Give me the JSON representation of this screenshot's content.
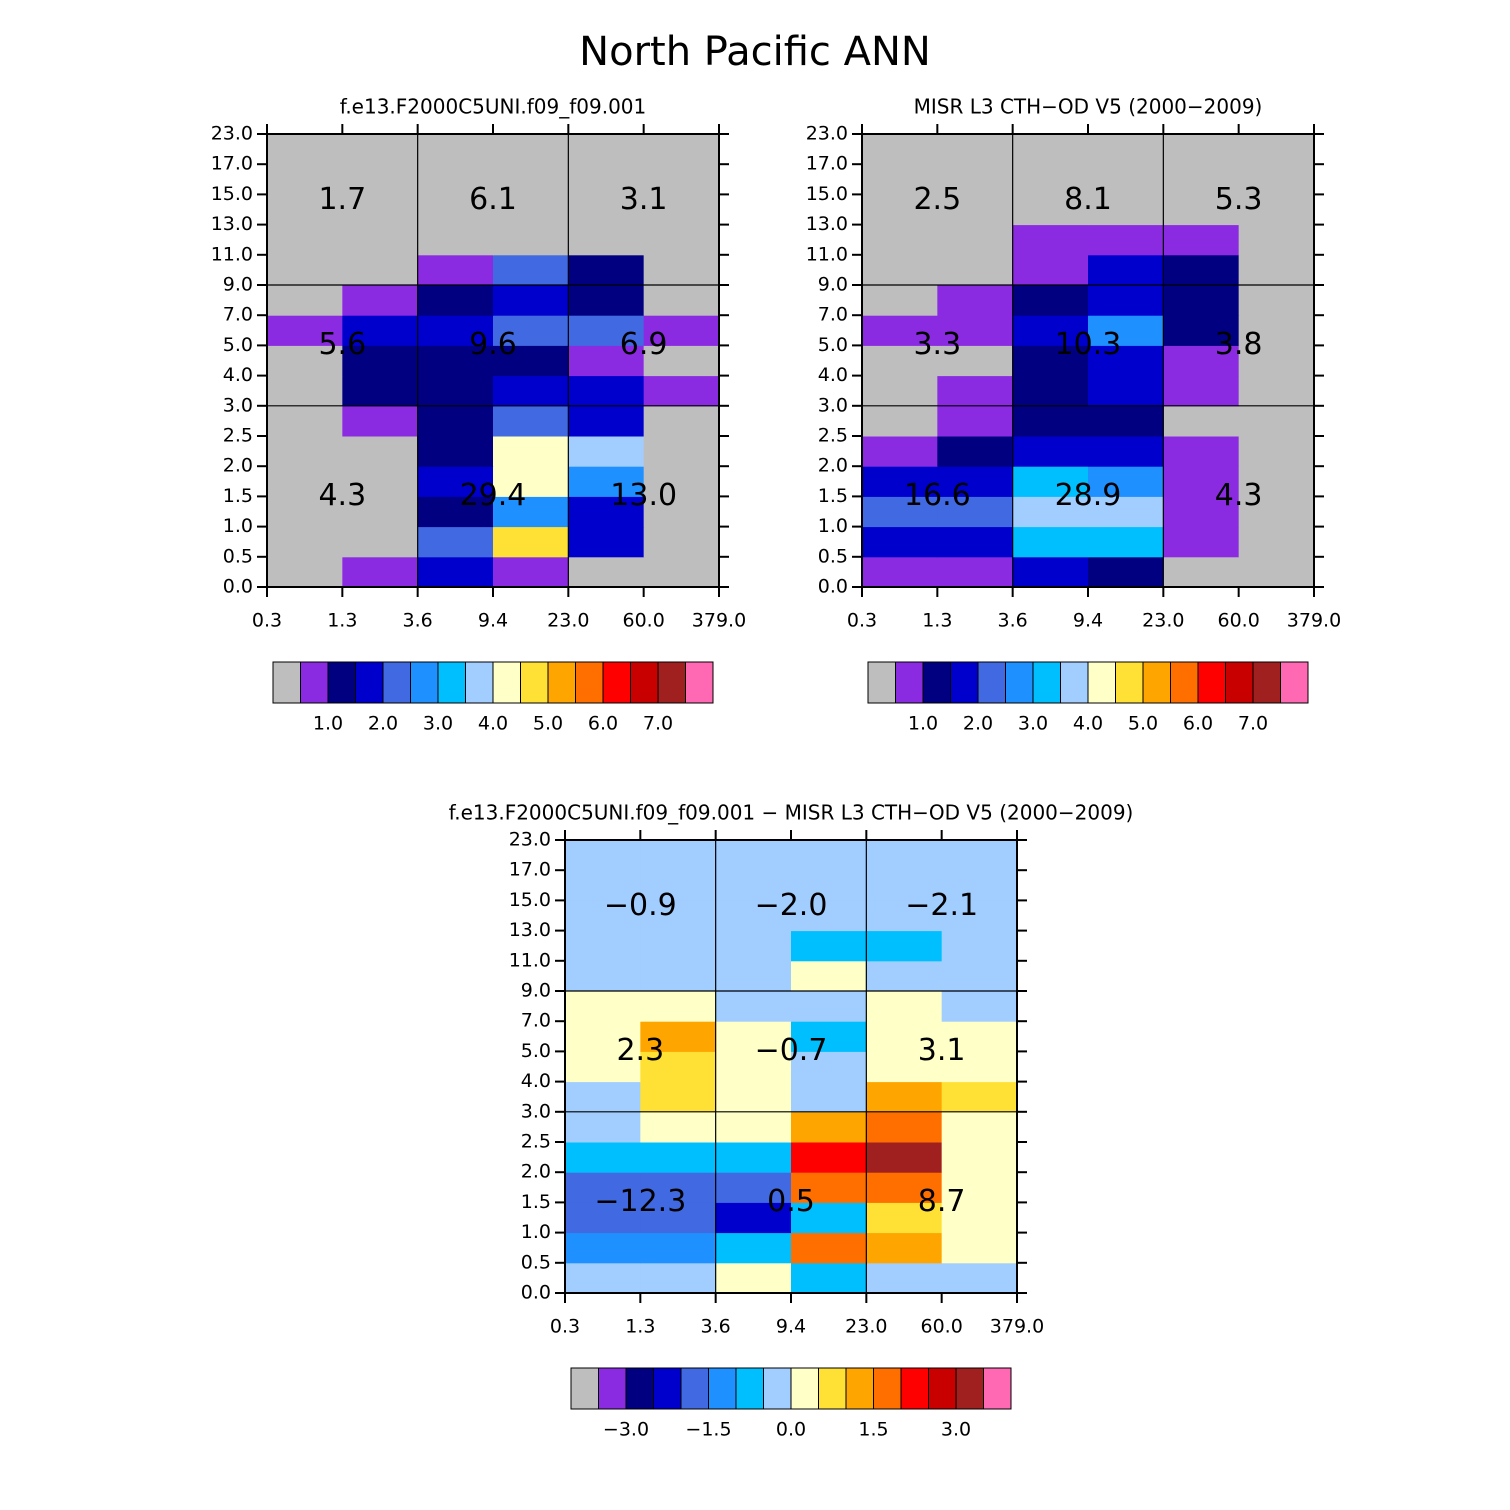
{
  "title": "North Pacific ANN",
  "chart_data": [
    {
      "type": "heatmap",
      "title": "f.e13.F2000C5UNI.f09_f09.001",
      "x_edges": [
        "0.3",
        "1.3",
        "3.6",
        "9.4",
        "23.0",
        "60.0",
        "379.0"
      ],
      "y_edges": [
        "0.0",
        "0.5",
        "1.0",
        "1.5",
        "2.0",
        "2.5",
        "3.0",
        "4.0",
        "5.0",
        "7.0",
        "9.0",
        "11.0",
        "13.0",
        "15.0",
        "17.0",
        "23.0"
      ],
      "values": [
        [
          0.2,
          0.75,
          1.75,
          0.75,
          0.2,
          0.2
        ],
        [
          0.2,
          0.2,
          2.25,
          4.75,
          1.75,
          0.2
        ],
        [
          0.2,
          0.2,
          1.25,
          2.75,
          1.75,
          0.2
        ],
        [
          0.2,
          0.2,
          1.75,
          4.25,
          2.75,
          0.2
        ],
        [
          0.2,
          0.2,
          1.25,
          4.25,
          3.75,
          0.2
        ],
        [
          0.2,
          0.75,
          1.25,
          2.25,
          1.75,
          0.2
        ],
        [
          0.2,
          1.25,
          1.25,
          1.75,
          1.75,
          0.75
        ],
        [
          0.2,
          1.25,
          1.25,
          1.25,
          0.75,
          0.2
        ],
        [
          0.75,
          1.75,
          1.75,
          2.25,
          2.25,
          0.75
        ],
        [
          0.2,
          0.75,
          1.25,
          1.75,
          1.25,
          0.2
        ],
        [
          0.2,
          0.2,
          0.75,
          2.25,
          1.25,
          0.2
        ],
        [
          0.2,
          0.2,
          0.2,
          0.2,
          0.2,
          0.2
        ],
        [
          0.2,
          0.2,
          0.2,
          0.2,
          0.2,
          0.2
        ],
        [
          0.2,
          0.2,
          0.2,
          0.2,
          0.2,
          0.2
        ],
        [
          0.2,
          0.2,
          0.2,
          0.2,
          0.2,
          0.2
        ]
      ],
      "block_values": [
        4.3,
        29.4,
        13.0,
        5.6,
        9.6,
        6.9,
        1.7,
        6.1,
        3.1
      ],
      "block_value_labels": [
        "4.3",
        "29.4",
        "13.0",
        "5.6",
        "9.6",
        "6.9",
        "1.7",
        "6.1",
        "3.1"
      ],
      "colors": [
        "#bebebe",
        "#8a2be2",
        "#000080",
        "#0000cd",
        "#4169e1",
        "#1e90ff",
        "#00bfff",
        "#a2cdff",
        "#ffffc8",
        "#ffe135",
        "#ffa500",
        "#ff6f00",
        "#ff0000",
        "#c80000",
        "#a02020",
        "#ff69b4"
      ],
      "levels": [
        0.5,
        1.0,
        1.5,
        2.0,
        2.5,
        3.0,
        3.5,
        4.0,
        4.5,
        5.0,
        5.5,
        6.0,
        6.5,
        7.0,
        7.5
      ],
      "colorbar_ticks": [
        {
          "value": 1,
          "label": "1.0"
        },
        {
          "value": 2,
          "label": "2.0"
        },
        {
          "value": 3,
          "label": "3.0"
        },
        {
          "value": 4,
          "label": "4.0"
        },
        {
          "value": 5,
          "label": "5.0"
        },
        {
          "value": 6,
          "label": "6.0"
        },
        {
          "value": 7,
          "label": "7.0"
        }
      ]
    },
    {
      "type": "heatmap",
      "title": "MISR L3 CTH−OD V5 (2000−2009)",
      "x_edges": [
        "0.3",
        "1.3",
        "3.6",
        "9.4",
        "23.0",
        "60.0",
        "379.0"
      ],
      "y_edges": [
        "0.0",
        "0.5",
        "1.0",
        "1.5",
        "2.0",
        "2.5",
        "3.0",
        "4.0",
        "5.0",
        "7.0",
        "9.0",
        "11.0",
        "13.0",
        "15.0",
        "17.0",
        "23.0"
      ],
      "values": [
        [
          0.75,
          0.75,
          1.75,
          1.25,
          0.2,
          0.2
        ],
        [
          1.75,
          1.75,
          3.25,
          3.25,
          0.75,
          0.2
        ],
        [
          2.25,
          2.25,
          3.75,
          3.75,
          0.75,
          0.2
        ],
        [
          1.75,
          1.75,
          3.25,
          2.75,
          0.75,
          0.2
        ],
        [
          0.75,
          1.25,
          1.75,
          1.75,
          0.75,
          0.2
        ],
        [
          0.2,
          0.75,
          1.25,
          1.25,
          0.2,
          0.2
        ],
        [
          0.2,
          0.75,
          1.25,
          1.75,
          0.75,
          0.2
        ],
        [
          0.2,
          0.2,
          1.25,
          1.75,
          0.75,
          0.2
        ],
        [
          0.75,
          0.75,
          1.75,
          2.75,
          1.25,
          0.2
        ],
        [
          0.2,
          0.75,
          1.25,
          1.75,
          1.25,
          0.2
        ],
        [
          0.2,
          0.2,
          0.75,
          1.75,
          1.25,
          0.2
        ],
        [
          0.2,
          0.2,
          0.75,
          0.75,
          0.75,
          0.2
        ],
        [
          0.2,
          0.2,
          0.2,
          0.2,
          0.2,
          0.2
        ],
        [
          0.2,
          0.2,
          0.2,
          0.2,
          0.2,
          0.2
        ],
        [
          0.2,
          0.2,
          0.2,
          0.2,
          0.2,
          0.2
        ]
      ],
      "block_values": [
        16.6,
        28.9,
        4.3,
        3.3,
        10.3,
        3.8,
        2.5,
        8.1,
        5.3
      ],
      "block_value_labels": [
        "16.6",
        "28.9",
        "4.3",
        "3.3",
        "10.3",
        "3.8",
        "2.5",
        "8.1",
        "5.3"
      ],
      "colors": [
        "#bebebe",
        "#8a2be2",
        "#000080",
        "#0000cd",
        "#4169e1",
        "#1e90ff",
        "#00bfff",
        "#a2cdff",
        "#ffffc8",
        "#ffe135",
        "#ffa500",
        "#ff6f00",
        "#ff0000",
        "#c80000",
        "#a02020",
        "#ff69b4"
      ],
      "levels": [
        0.5,
        1.0,
        1.5,
        2.0,
        2.5,
        3.0,
        3.5,
        4.0,
        4.5,
        5.0,
        5.5,
        6.0,
        6.5,
        7.0,
        7.5
      ],
      "colorbar_ticks": [
        {
          "value": 1,
          "label": "1.0"
        },
        {
          "value": 2,
          "label": "2.0"
        },
        {
          "value": 3,
          "label": "3.0"
        },
        {
          "value": 4,
          "label": "4.0"
        },
        {
          "value": 5,
          "label": "5.0"
        },
        {
          "value": 6,
          "label": "6.0"
        },
        {
          "value": 7,
          "label": "7.0"
        }
      ]
    },
    {
      "type": "heatmap",
      "title": "f.e13.F2000C5UNI.f09_f09.001 − MISR L3 CTH−OD V5 (2000−2009)",
      "x_edges": [
        "0.3",
        "1.3",
        "3.6",
        "9.4",
        "23.0",
        "60.0",
        "379.0"
      ],
      "y_edges": [
        "0.0",
        "0.5",
        "1.0",
        "1.5",
        "2.0",
        "2.5",
        "3.0",
        "4.0",
        "5.0",
        "7.0",
        "9.0",
        "11.0",
        "13.0",
        "15.0",
        "17.0",
        "23.0"
      ],
      "values": [
        [
          -0.25,
          -0.25,
          0.25,
          -0.75,
          -0.25,
          -0.25
        ],
        [
          -1.25,
          -1.25,
          -0.75,
          1.75,
          1.25,
          0.25
        ],
        [
          -1.75,
          -1.75,
          -2.25,
          -0.75,
          0.75,
          0.25
        ],
        [
          -1.75,
          -1.75,
          -1.75,
          1.75,
          1.75,
          0.25
        ],
        [
          -0.75,
          -0.75,
          -0.75,
          2.25,
          3.25,
          0.25
        ],
        [
          -0.25,
          0.25,
          0.25,
          1.25,
          1.75,
          0.25
        ],
        [
          -0.25,
          0.75,
          0.25,
          -0.25,
          1.25,
          0.75
        ],
        [
          0.25,
          0.75,
          0.25,
          -0.25,
          0.25,
          0.25
        ],
        [
          0.25,
          1.25,
          0.25,
          -0.75,
          0.25,
          0.25
        ],
        [
          0.25,
          0.25,
          -0.25,
          -0.25,
          0.25,
          -0.25
        ],
        [
          -0.25,
          -0.25,
          -0.25,
          0.25,
          -0.25,
          -0.25
        ],
        [
          -0.25,
          -0.25,
          -0.25,
          -0.75,
          -0.75,
          -0.25
        ],
        [
          -0.25,
          -0.25,
          -0.25,
          -0.25,
          -0.25,
          -0.25
        ],
        [
          -0.25,
          -0.25,
          -0.25,
          -0.25,
          -0.25,
          -0.25
        ],
        [
          -0.25,
          -0.25,
          -0.25,
          -0.25,
          -0.25,
          -0.25
        ]
      ],
      "block_values": [
        -12.3,
        0.5,
        8.7,
        2.3,
        -0.7,
        3.1,
        -0.9,
        -2.0,
        -2.1
      ],
      "block_value_labels": [
        "−12.3",
        "0.5",
        "8.7",
        "2.3",
        "−0.7",
        "3.1",
        "−0.9",
        "−2.0",
        "−2.1"
      ],
      "colors": [
        "#bebebe",
        "#8a2be2",
        "#000080",
        "#0000cd",
        "#4169e1",
        "#1e90ff",
        "#00bfff",
        "#a2cdff",
        "#ffffc8",
        "#ffe135",
        "#ffa500",
        "#ff6f00",
        "#ff0000",
        "#c80000",
        "#a02020",
        "#ff69b4"
      ],
      "levels": [
        -3.5,
        -3.0,
        -2.5,
        -2.0,
        -1.5,
        -1.0,
        -0.5,
        0.0,
        0.5,
        1.0,
        1.5,
        2.0,
        2.5,
        3.0,
        3.5
      ],
      "colorbar_ticks": [
        {
          "value": -3,
          "label": "−3.0"
        },
        {
          "value": -1.5,
          "label": "−1.5"
        },
        {
          "value": 0,
          "label": "0.0"
        },
        {
          "value": 1.5,
          "label": "1.5"
        },
        {
          "value": 3,
          "label": "3.0"
        }
      ]
    }
  ]
}
